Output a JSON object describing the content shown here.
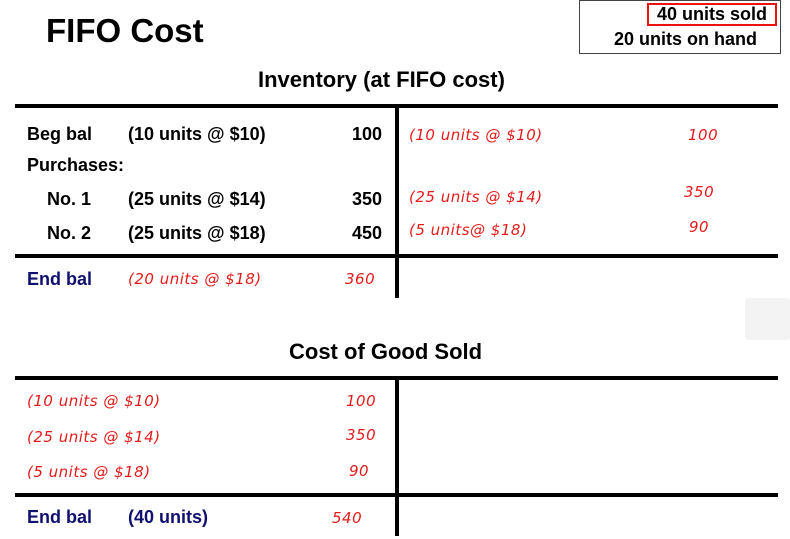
{
  "title": "FIFO Cost",
  "info": {
    "sold": "40 units sold",
    "on_hand": "20 units on hand"
  },
  "inventory": {
    "heading": "Inventory (at FIFO cost)",
    "beg_label": "Beg bal",
    "beg_desc": "(10 units @ $10)",
    "beg_amount": "100",
    "purchases_label": "Purchases:",
    "p1_label": "No. 1",
    "p1_desc": "(25 units @ $14)",
    "p1_amount": "350",
    "p2_label": "No. 2",
    "p2_desc": "(25 units @ $18)",
    "p2_amount": "450",
    "end_label": "End bal",
    "end_desc": "(20 units @ $18)",
    "end_amount": "360",
    "credits": [
      {
        "desc": "(10 units @ $10)",
        "amount": "100"
      },
      {
        "desc": "(25 units @ $14)",
        "amount": "350"
      },
      {
        "desc": "(5 units@ $18)",
        "amount": "90"
      }
    ]
  },
  "cogs": {
    "heading": "Cost of Good Sold",
    "rows": [
      {
        "desc": "(10 units @ $10)",
        "amount": "100"
      },
      {
        "desc": "(25 units @ $14)",
        "amount": "350"
      },
      {
        "desc": "(5 units @ $18)",
        "amount": "90"
      }
    ],
    "end_label": "End bal",
    "end_desc": "(40 units)",
    "end_amount": "540"
  }
}
